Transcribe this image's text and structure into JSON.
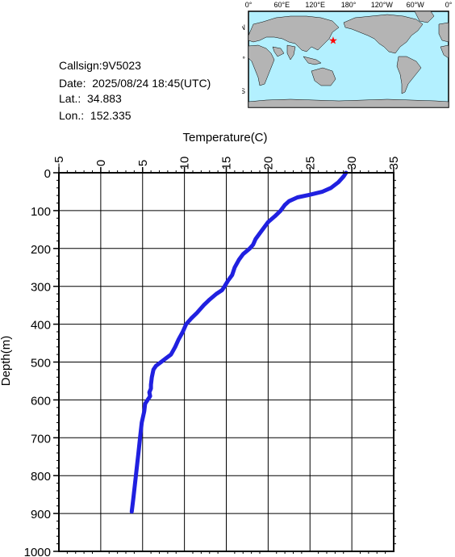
{
  "info": {
    "callsign": "Callsign:9V5023",
    "date": "Date:  2025/08/24 18:45(UTC)",
    "lat": "Lat.:  34.883",
    "lon": "Lon.:  152.335"
  },
  "map": {
    "top_labels": [
      "0°",
      "60°E",
      "120°E",
      "180°",
      "120°W",
      "60°W",
      "0°"
    ],
    "left_labels": [
      "60°N",
      "0°",
      "60°S"
    ],
    "marker": {
      "lat": 34.883,
      "lon": 152.335
    },
    "colors": {
      "ocean": "#b3f0ff",
      "land": "#b4b4b4",
      "marker": "#ff0000"
    }
  },
  "chart_data": {
    "type": "line",
    "title": "",
    "xlabel": "Temperature(C)",
    "ylabel": "Depth(m)",
    "xlim": [
      -5,
      35
    ],
    "ylim": [
      0,
      1000
    ],
    "y_inverted": true,
    "x_ticks": [
      "−5",
      "0",
      "5",
      "10",
      "15",
      "20",
      "25",
      "30",
      "35"
    ],
    "y_ticks": [
      "0",
      "100",
      "200",
      "300",
      "400",
      "500",
      "600",
      "700",
      "800",
      "900",
      "1000"
    ],
    "grid": true,
    "line_color": "#2020e0",
    "series": [
      {
        "x": [
          29.3,
          29.0,
          28.4,
          27.5,
          26.5,
          25.0,
          23.5,
          22.5,
          22.0,
          21.5,
          20.8,
          20.0,
          19.5,
          19.0,
          18.5,
          18.2,
          17.8,
          17.0,
          16.5,
          16.0,
          15.7,
          15.2,
          14.8,
          14.5,
          13.8,
          13.0,
          12.3,
          11.5,
          10.8,
          10.2,
          9.8,
          9.3,
          8.9,
          8.4,
          7.8,
          7.2,
          6.6,
          6.3,
          6.1,
          6.0,
          6.0,
          5.8,
          5.9,
          5.6,
          5.3,
          5.2,
          4.9,
          4.7,
          4.5,
          4.3,
          4.1,
          3.9,
          3.7
        ],
        "y": [
          0,
          10,
          25,
          40,
          50,
          58,
          65,
          75,
          85,
          100,
          115,
          130,
          145,
          160,
          175,
          190,
          200,
          215,
          230,
          250,
          270,
          285,
          300,
          310,
          320,
          335,
          350,
          370,
          385,
          400,
          420,
          440,
          460,
          480,
          490,
          500,
          510,
          520,
          540,
          560,
          570,
          580,
          590,
          600,
          610,
          630,
          660,
          700,
          740,
          780,
          820,
          860,
          895
        ]
      }
    ]
  }
}
